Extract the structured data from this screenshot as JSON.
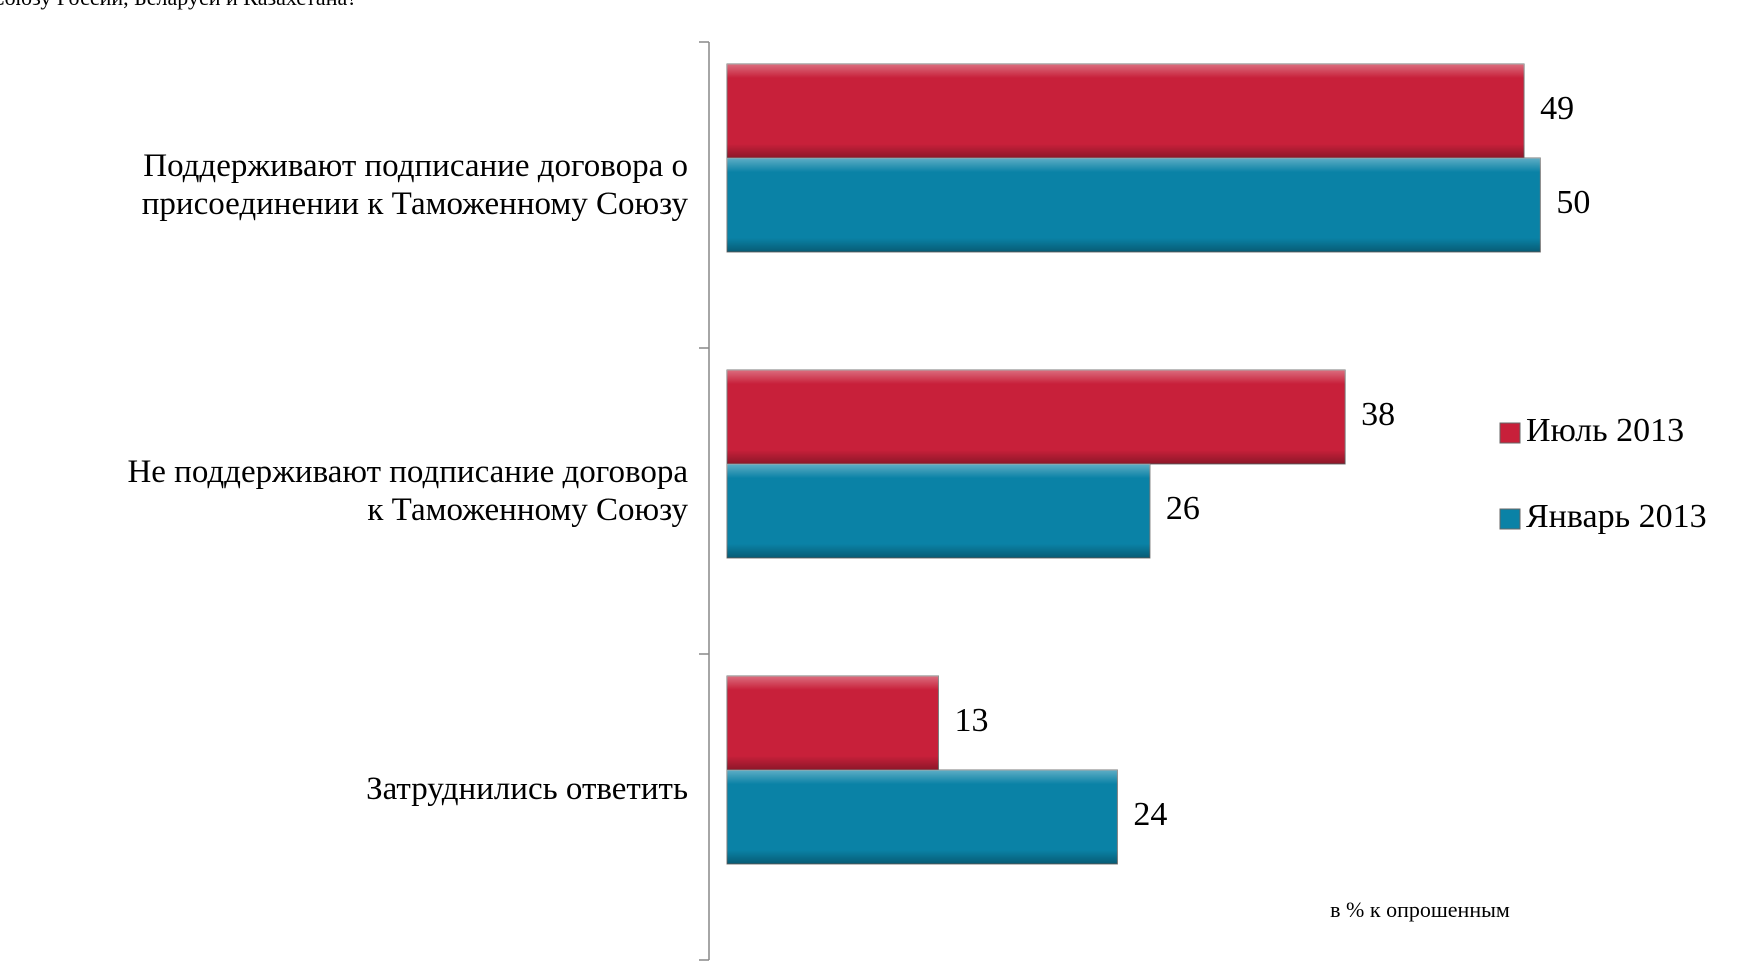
{
  "chart_data": {
    "type": "hbar",
    "title": "Союзу России, Беларуси и Казахстана?",
    "annotation": "в % к опрошенным",
    "categories": [
      "Поддерживают подписание договора о\nприсоединении к Таможенному Союзу",
      "Не поддерживают подписание договора\nк Таможенному Союзу",
      "Затруднились ответить"
    ],
    "series": [
      {
        "name": "Июль 2013",
        "color": "#c8203a",
        "values": [
          49,
          38,
          13
        ]
      },
      {
        "name": "Январь 2013",
        "color": "#0a82a6",
        "values": [
          50,
          26,
          24
        ]
      }
    ],
    "xlim": [
      0,
      60
    ],
    "legend": "right"
  }
}
